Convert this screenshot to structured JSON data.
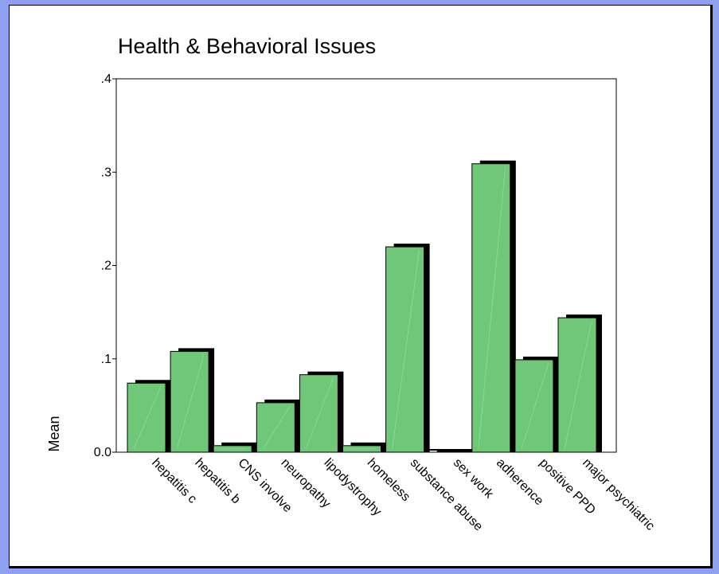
{
  "colors": {
    "frame_outer": "#2233a8",
    "frame_inner": "#8fa0f2",
    "bar_fill": "#6fc878",
    "bar_shadow": "#000000",
    "background": "#ffffff"
  },
  "chart_data": {
    "type": "bar",
    "title": "Health & Behavioral Issues",
    "xlabel": "",
    "ylabel": "Mean",
    "ylim": [
      0,
      0.4
    ],
    "yticks": [
      {
        "value": 0.0,
        "label": "0.0"
      },
      {
        "value": 0.1,
        "label": ".1"
      },
      {
        "value": 0.2,
        "label": ".2"
      },
      {
        "value": 0.3,
        "label": ".3"
      },
      {
        "value": 0.4,
        "label": ".4"
      }
    ],
    "categories": [
      "hepatitis c",
      "hepatitis b",
      "CNS involve",
      "neuropathy",
      "lipodystrophy",
      "homeless",
      "substance abuse",
      "sex work",
      "adherence",
      "positive PPD",
      "major psychiatric"
    ],
    "values": [
      0.074,
      0.108,
      0.007,
      0.053,
      0.083,
      0.007,
      0.22,
      0.0,
      0.309,
      0.099,
      0.144
    ],
    "grid": false,
    "legend": "none",
    "style": "3d-shadow"
  }
}
